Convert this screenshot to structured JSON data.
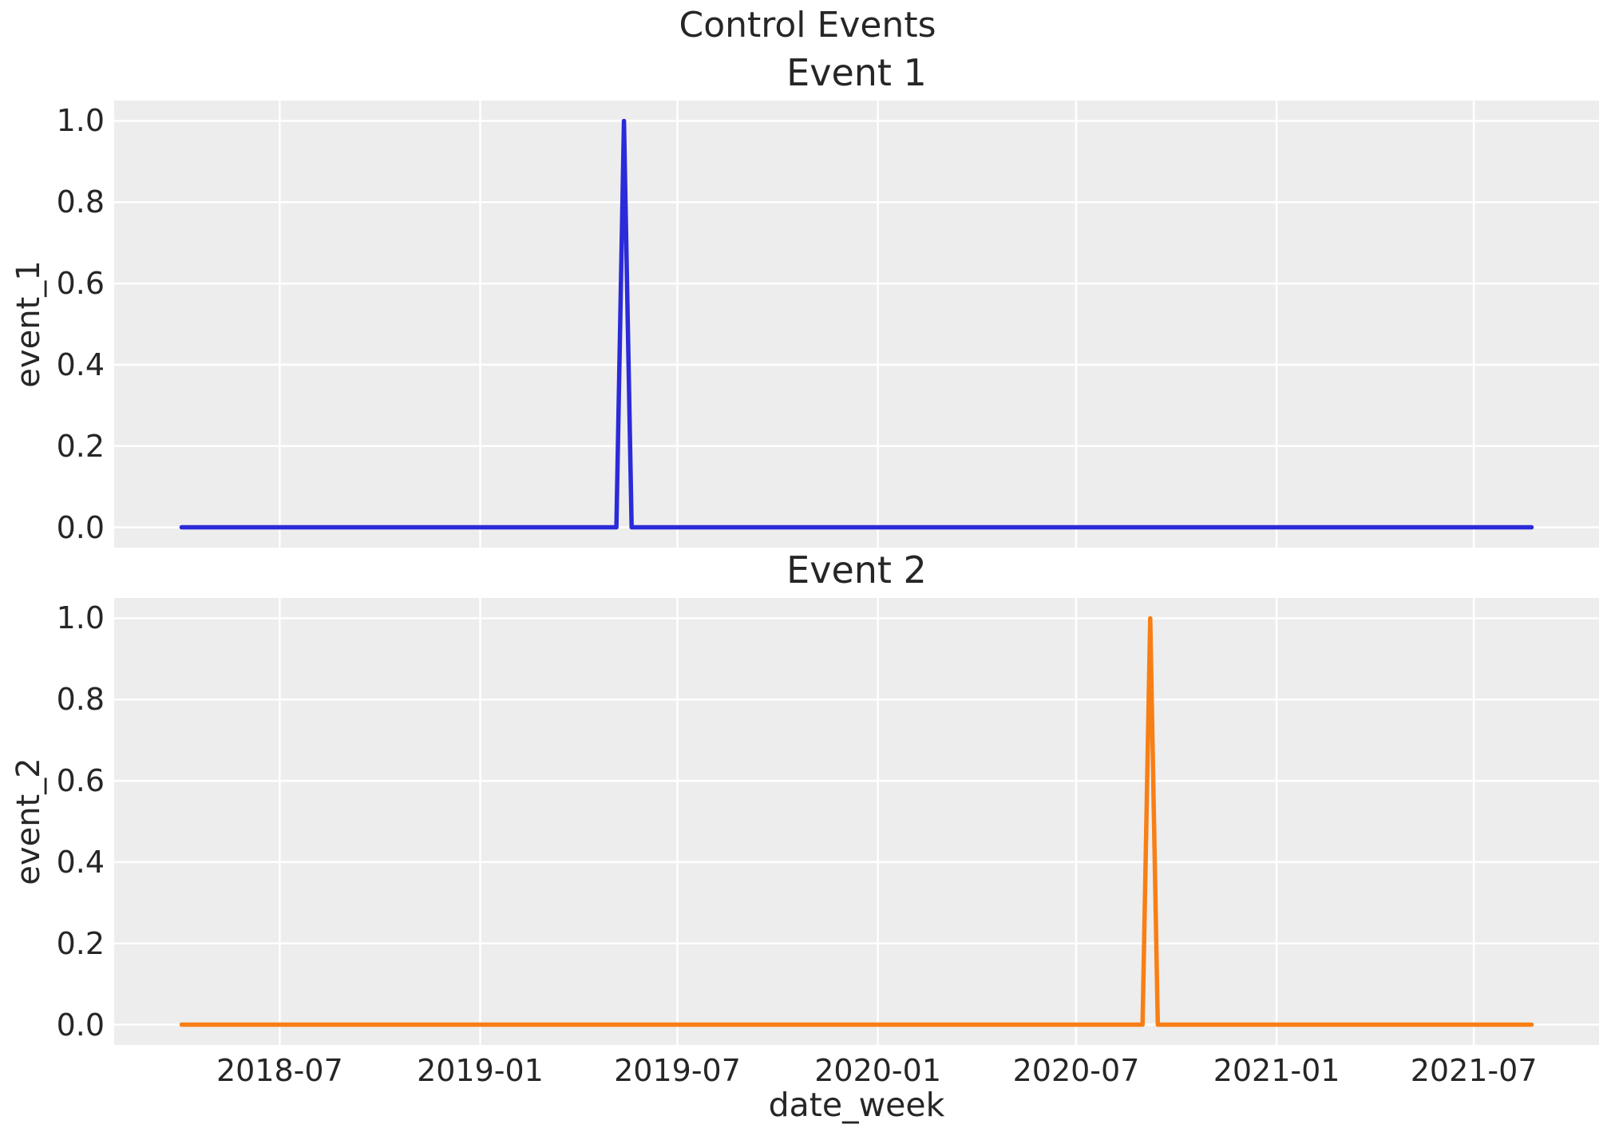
{
  "figure": {
    "suptitle": "Control Events",
    "xlabel": "date_week",
    "background_color": "#ffffff",
    "plot_bg_color": "#ededed",
    "grid_color": "#ffffff",
    "text_color": "#262626"
  },
  "chart_data": [
    {
      "type": "line",
      "title": "Event 1",
      "ylabel": "event_1",
      "line_color": "#2b2bd9",
      "x_ticks": [
        "2018-07",
        "2019-01",
        "2019-07",
        "2020-01",
        "2020-07",
        "2021-01",
        "2021-07"
      ],
      "y_ticks": [
        "0.0",
        "0.2",
        "0.4",
        "0.6",
        "0.8",
        "1.0"
      ],
      "ylim": [
        0,
        1
      ],
      "x_range": [
        "2018-04-02",
        "2021-08-23"
      ],
      "grid": true,
      "legend": "none",
      "show_x_tick_labels": false,
      "description": "weekly dummy series, value 0 everywhere except a single-week spike to 1.0",
      "spike": {
        "date": "2019-05-13",
        "value": 1.0
      },
      "points": [
        {
          "x": "2018-04-02",
          "y": 0
        },
        {
          "x": "2019-05-06",
          "y": 0
        },
        {
          "x": "2019-05-13",
          "y": 1
        },
        {
          "x": "2019-05-20",
          "y": 0
        },
        {
          "x": "2021-08-23",
          "y": 0
        }
      ]
    },
    {
      "type": "line",
      "title": "Event 2",
      "ylabel": "event_2",
      "line_color": "#f87f15",
      "x_ticks": [
        "2018-07",
        "2019-01",
        "2019-07",
        "2020-01",
        "2020-07",
        "2021-01",
        "2021-07"
      ],
      "y_ticks": [
        "0.0",
        "0.2",
        "0.4",
        "0.6",
        "0.8",
        "1.0"
      ],
      "ylim": [
        0,
        1
      ],
      "x_range": [
        "2018-04-02",
        "2021-08-23"
      ],
      "grid": true,
      "legend": "none",
      "show_x_tick_labels": true,
      "description": "weekly dummy series, value 0 everywhere except a single-week spike to 1.0",
      "spike": {
        "date": "2020-09-07",
        "value": 1.0
      },
      "points": [
        {
          "x": "2018-04-02",
          "y": 0
        },
        {
          "x": "2020-08-31",
          "y": 0
        },
        {
          "x": "2020-09-07",
          "y": 1
        },
        {
          "x": "2020-09-14",
          "y": 0
        },
        {
          "x": "2021-08-23",
          "y": 0
        }
      ]
    }
  ]
}
